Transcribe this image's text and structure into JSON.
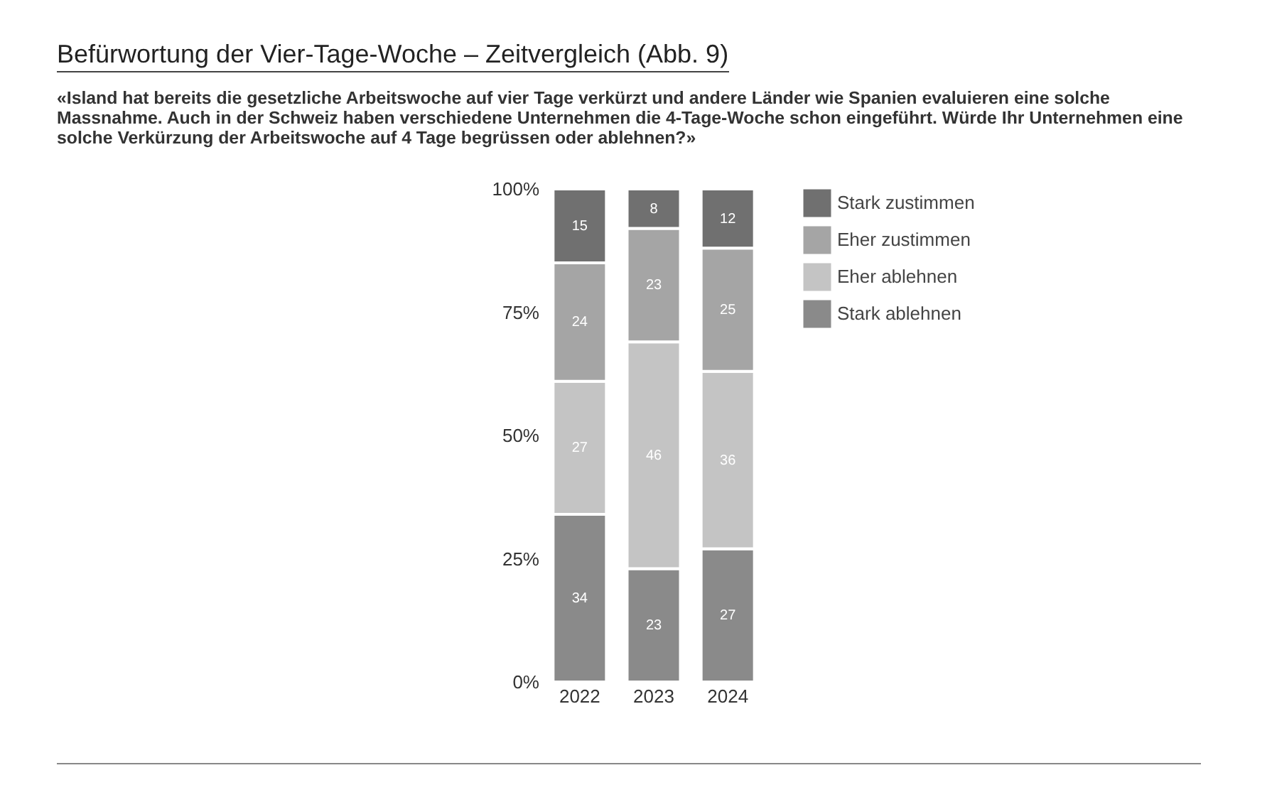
{
  "chart_data": {
    "type": "bar",
    "title": "Befürwortung der Vier-Tage-Woche – Zeitvergleich  (Abb. 9)",
    "subtitle": "«Island hat bereits die gesetzliche Arbeitswoche auf vier Tage verkürzt und andere Länder wie Spanien evaluieren eine solche Massnahme. Auch in der Schweiz haben verschiedene Unternehmen die 4-Tage-Woche schon eingeführt. Würde Ihr Unternehmen eine solche Verkürzung der Arbeitswoche auf 4 Tage begrüssen oder ablehnen?»",
    "categories": [
      "2022",
      "2023",
      "2024"
    ],
    "stacked": true,
    "series": [
      {
        "name": "Stark ablehnen",
        "color": "#8a8a8a",
        "values": [
          34,
          23,
          27
        ]
      },
      {
        "name": "Eher ablehnen",
        "color": "#c4c4c4",
        "values": [
          27,
          46,
          36
        ]
      },
      {
        "name": "Eher zustimmen",
        "color": "#a5a5a5",
        "values": [
          24,
          23,
          25
        ]
      },
      {
        "name": "Stark zustimmen",
        "color": "#707070",
        "values": [
          15,
          8,
          12
        ]
      }
    ],
    "ylim": [
      0,
      100
    ],
    "yticks": [
      {
        "value": 0,
        "label": "0%"
      },
      {
        "value": 25,
        "label": "25%"
      },
      {
        "value": 50,
        "label": "50%"
      },
      {
        "value": 75,
        "label": "75%"
      },
      {
        "value": 100,
        "label": "100%"
      }
    ],
    "data_labels": true,
    "legend": "right",
    "grid": false
  }
}
